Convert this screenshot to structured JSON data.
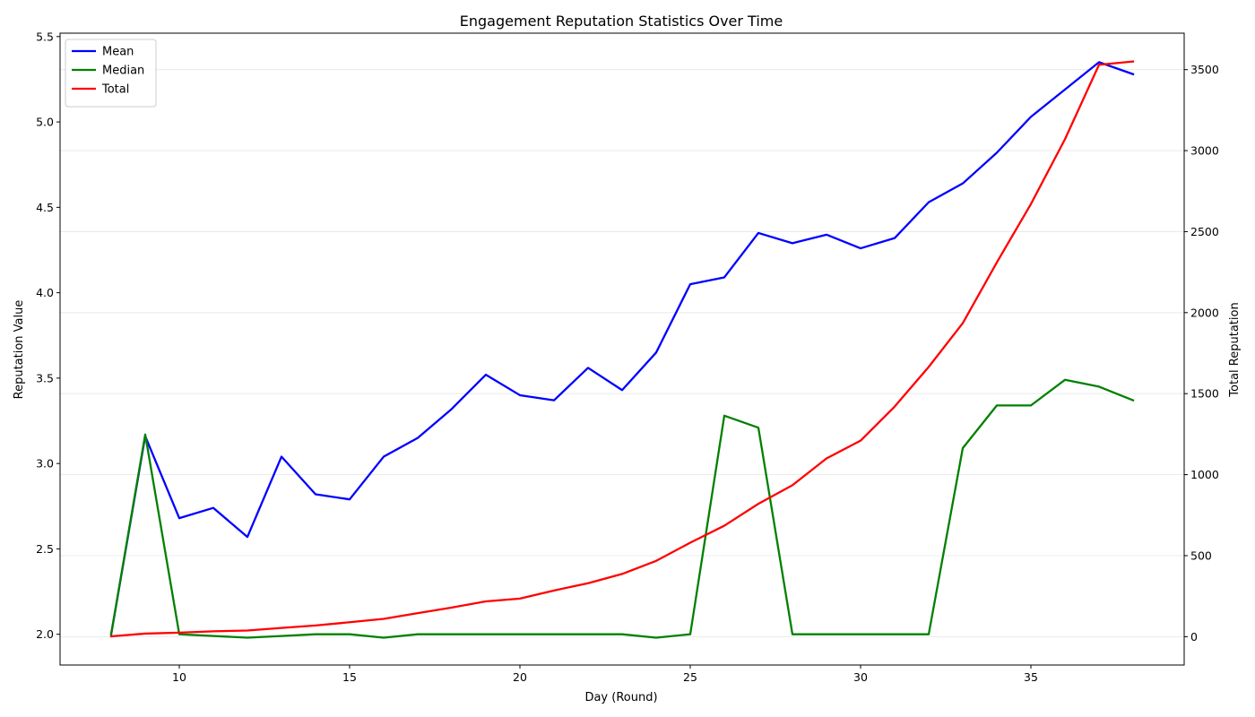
{
  "chart_data": {
    "type": "line",
    "title": "Engagement Reputation Statistics Over Time",
    "xlabel": "Day (Round)",
    "ylabel_left": "Reputation Value",
    "ylabel_right": "Total Reputation",
    "xlim": [
      6.5,
      39.5
    ],
    "ylim_left": [
      1.82,
      5.52
    ],
    "ylim_right": [
      -175,
      3725
    ],
    "x_ticks": [
      10,
      15,
      20,
      25,
      30,
      35
    ],
    "y_ticks_left": [
      2.0,
      2.5,
      3.0,
      3.5,
      4.0,
      4.5,
      5.0,
      5.5
    ],
    "y_ticks_left_labels": [
      "2.0",
      "2.5",
      "3.0",
      "3.5",
      "4.0",
      "4.5",
      "5.0",
      "5.5"
    ],
    "y_ticks_right": [
      0,
      500,
      1000,
      1500,
      2000,
      2500,
      3000,
      3500
    ],
    "grid": "horizontal (right axis)",
    "legend_position": "top-left",
    "x": [
      8,
      9,
      10,
      11,
      12,
      13,
      14,
      15,
      16,
      17,
      18,
      19,
      20,
      21,
      22,
      23,
      24,
      25,
      26,
      27,
      28,
      29,
      30,
      31,
      32,
      33,
      34,
      35,
      36,
      37,
      38
    ],
    "series": [
      {
        "name": "Mean",
        "axis": "left",
        "color": "#0000ff",
        "values": [
          2.0,
          3.16,
          2.68,
          2.74,
          2.57,
          3.04,
          2.82,
          2.79,
          3.04,
          3.15,
          3.32,
          3.52,
          3.4,
          3.37,
          3.56,
          3.43,
          3.65,
          4.05,
          4.09,
          4.35,
          4.29,
          4.34,
          4.26,
          4.32,
          4.53,
          4.64,
          4.82,
          5.03,
          5.19,
          5.35,
          5.28
        ]
      },
      {
        "name": "Median",
        "axis": "left",
        "color": "#008000",
        "values": [
          2.0,
          3.17,
          2.0,
          1.99,
          1.98,
          1.99,
          2.0,
          2.0,
          1.98,
          2.0,
          2.0,
          2.0,
          2.0,
          2.0,
          2.0,
          2.0,
          1.98,
          2.0,
          3.28,
          3.21,
          2.0,
          2.0,
          2.0,
          2.0,
          2.0,
          3.09,
          3.34,
          3.34,
          3.49,
          3.45,
          3.37
        ]
      },
      {
        "name": "Total",
        "axis": "right",
        "color": "#ff0000",
        "values": [
          2,
          19,
          25,
          33,
          38,
          54,
          69,
          89,
          110,
          145,
          180,
          218,
          235,
          285,
          330,
          387,
          468,
          580,
          685,
          820,
          935,
          1100,
          1210,
          1420,
          1665,
          1935,
          2310,
          2670,
          3070,
          3530,
          3550
        ]
      }
    ]
  }
}
